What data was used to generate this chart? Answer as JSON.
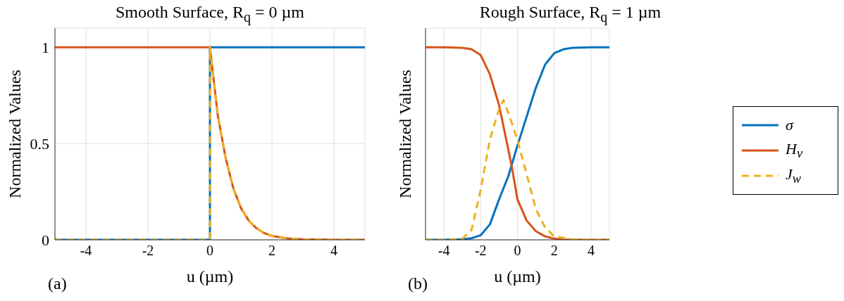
{
  "chart_data": [
    {
      "type": "line",
      "title": "Smooth Surface, R$_{q}$ = 0 µm",
      "xlabel": "u (µm)",
      "ylabel": "Normalized Values",
      "xlim": [
        -5,
        5
      ],
      "xticks": [
        -4,
        -2,
        0,
        2,
        4
      ],
      "ylim": [
        0,
        1.1
      ],
      "yticks": [
        0,
        0.5,
        1
      ],
      "grid": true,
      "legend": false,
      "annotations": [
        "(a)"
      ],
      "series": [
        {
          "color": "#0072bd",
          "line_style": "solid",
          "x": [
            -5,
            0,
            0,
            5
          ],
          "values": [
            0,
            0,
            1,
            1
          ]
        },
        {
          "color": "#d95319",
          "line_style": "solid",
          "x": [
            -5,
            0,
            0.25,
            0.5,
            0.75,
            1,
            1.25,
            1.5,
            1.75,
            2,
            2.5,
            3,
            4,
            5
          ],
          "values": [
            1,
            1,
            0.65,
            0.43,
            0.27,
            0.165,
            0.1,
            0.06,
            0.035,
            0.02,
            0.007,
            0.003,
            0,
            0
          ]
        },
        {
          "color": "#edb120",
          "line_style": "dashed",
          "x": [
            -5,
            0,
            0,
            0.25,
            0.5,
            0.75,
            1,
            1.25,
            1.5,
            1.75,
            2,
            2.5,
            3,
            4,
            5
          ],
          "values": [
            0,
            0,
            1,
            0.65,
            0.43,
            0.27,
            0.165,
            0.1,
            0.06,
            0.035,
            0.02,
            0.007,
            0.003,
            0,
            0
          ]
        }
      ]
    },
    {
      "type": "line",
      "title": "Rough Surface, R$_{q}$ = 1 µm",
      "xlabel": "u (µm)",
      "ylabel": "Normalized Values",
      "xlim": [
        -5,
        5
      ],
      "xticks": [
        -4,
        -2,
        0,
        2,
        4
      ],
      "ylim": [
        0,
        1.1
      ],
      "yticks": [
        0,
        0.5,
        1
      ],
      "grid": true,
      "legend": "right",
      "tick_labels": "x",
      "annotations": [
        "(b)"
      ],
      "series": [
        {
          "name": "σ",
          "color": "#0072bd",
          "line_style": "solid",
          "x": [
            -5,
            -4,
            -3,
            -2.5,
            -2,
            -1.5,
            -1,
            -0.5,
            0,
            0.5,
            1,
            1.5,
            2,
            2.5,
            3,
            4,
            5
          ],
          "values": [
            0,
            0,
            0.003,
            0.008,
            0.024,
            0.08,
            0.21,
            0.33,
            0.49,
            0.64,
            0.79,
            0.91,
            0.97,
            0.99,
            0.998,
            1,
            1
          ]
        },
        {
          "name": "H$_{v}$",
          "color": "#d95319",
          "line_style": "solid",
          "x": [
            -5,
            -4,
            -3,
            -2.5,
            -2,
            -1.5,
            -1,
            -0.5,
            -0.3,
            0,
            0.5,
            1,
            1.5,
            2,
            2.5,
            3,
            4,
            5
          ],
          "values": [
            1,
            1,
            0.998,
            0.99,
            0.96,
            0.86,
            0.7,
            0.47,
            0.375,
            0.21,
            0.1,
            0.045,
            0.018,
            0.006,
            0.002,
            0,
            0,
            0
          ]
        },
        {
          "name": "J$_{w}$",
          "color": "#edb120",
          "line_style": "dashed",
          "x": [
            -5,
            -4,
            -3,
            -2.5,
            -2,
            -1.5,
            -1,
            -0.76,
            -0.5,
            0,
            0.5,
            1,
            1.5,
            2,
            3,
            4,
            5
          ],
          "values": [
            0,
            0,
            0.006,
            0.05,
            0.26,
            0.52,
            0.68,
            0.726,
            0.66,
            0.52,
            0.34,
            0.16,
            0.065,
            0.018,
            0.002,
            0,
            0
          ]
        }
      ]
    }
  ]
}
